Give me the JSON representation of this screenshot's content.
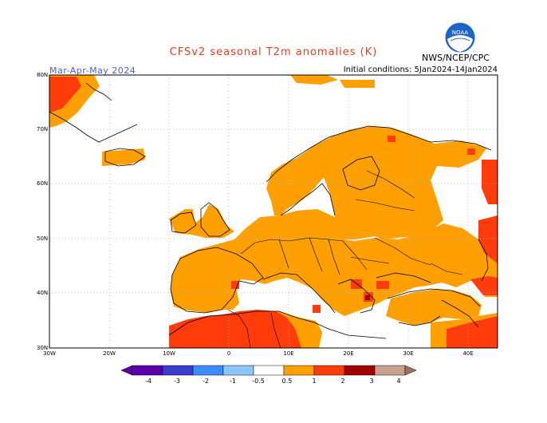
{
  "header": {
    "title": "CFSv2 seasonal T2m anomalies (K)",
    "season": "Mar-Apr-May 2024",
    "init": "Initial conditions: 5Jan2024-14Jan2024",
    "agency": "NWS/NCEP/CPC",
    "logo_text": "NOAA"
  },
  "colors": {
    "warm1": "#ffa000",
    "warm2": "#ff3c0a",
    "warm3": "#a00000",
    "warm4": "#c8a090",
    "cold1": "#8cc8ff",
    "cold2": "#3c8cff",
    "cold3": "#3c3cd0",
    "cold4": "#5a00aa"
  },
  "axes": {
    "lat_labels": [
      "80N",
      "70N",
      "60N",
      "50N",
      "40N",
      "30N"
    ],
    "lon_labels": [
      "30W",
      "20W",
      "10W",
      "0",
      "10E",
      "20E",
      "30E",
      "40E"
    ],
    "lat_values": [
      80,
      70,
      60,
      50,
      40,
      30
    ],
    "lon_values": [
      -30,
      -20,
      -10,
      0,
      10,
      20,
      30,
      40
    ],
    "lon_range": [
      -30,
      45
    ],
    "lat_range": [
      30,
      80
    ]
  },
  "colorbar": {
    "labels": [
      "-4",
      "-3",
      "-2",
      "-1",
      "-0.5",
      "0.5",
      "1",
      "2",
      "3",
      "4"
    ],
    "bounds": [
      -4,
      -3,
      -2,
      -1,
      -0.5,
      0.5,
      1,
      2,
      3,
      4
    ]
  }
}
